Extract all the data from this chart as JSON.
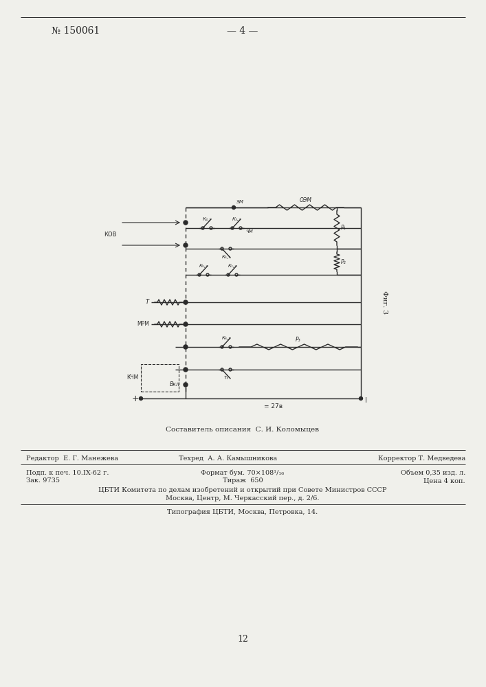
{
  "bg_color": "#f0f0eb",
  "line_color": "#2a2a2a",
  "header_text": "№ 150061",
  "header_center": "— 4 —",
  "fig3_label": "Фиг. 3",
  "composer_text": "Составитель описания  С. И. Коломыцев",
  "footer_line1_left": "Редактор  Е. Г. Манежева",
  "footer_line1_center": "Техред  А. А. Камышникова",
  "footer_line1_right": "Корректор Т. Медведева",
  "footer_line2_left": "Подп. к печ. 10.IX-62 г.",
  "footer_line2_center": "Формат бум. 70×108¹/₁₆",
  "footer_line2_right": "Объем 0,35 изд. л.",
  "footer_line3_left": "Зак. 9735",
  "footer_line3_center": "Тираж  650",
  "footer_line3_right": "Цена 4 коп.",
  "footer_line4": "ЦБТИ Комитета по делам изобретений и открытий при Совете Министров СССР",
  "footer_line5": "Москва, Центр, М. Черкасский пер., д. 2/6.",
  "footer_line6": "Типография ЦБТИ, Москва, Петровка, 14.",
  "page_number": "12"
}
